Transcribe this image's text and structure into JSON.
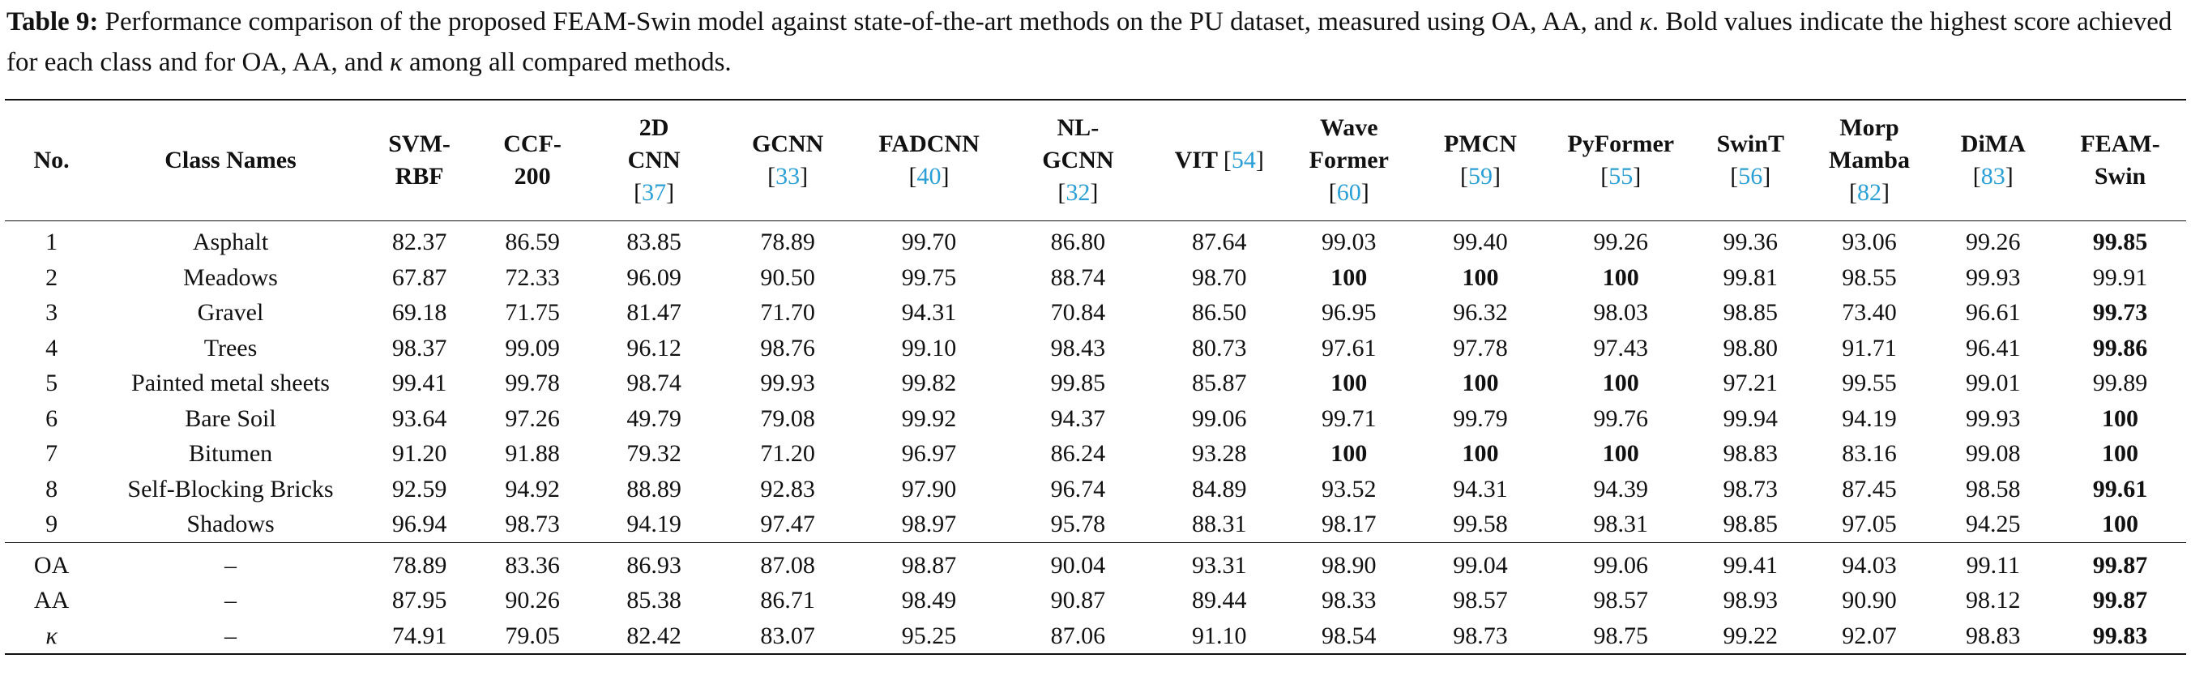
{
  "caption": {
    "label": "Table 9:",
    "text_before_kappa": " Performance comparison of the proposed FEAM-Swin model against state-of-the-art methods on the PU dataset, measured using OA, AA, and ",
    "kappa": "κ",
    "text_middle": ". Bold values indicate the highest score achieved for each class and for OA, AA, and ",
    "text_end": " among all compared methods."
  },
  "table": {
    "headers": [
      {
        "lines": [
          "No."
        ],
        "ref": null
      },
      {
        "lines": [
          "Class Names"
        ],
        "ref": null
      },
      {
        "lines": [
          "SVM-",
          "RBF"
        ],
        "ref": null
      },
      {
        "lines": [
          "CCF-",
          "200"
        ],
        "ref": null
      },
      {
        "lines": [
          "2D",
          "CNN"
        ],
        "ref": "37"
      },
      {
        "lines": [
          "GCNN"
        ],
        "ref": "33"
      },
      {
        "lines": [
          "FADCNN"
        ],
        "ref": "40"
      },
      {
        "lines": [
          "NL-",
          "GCNN"
        ],
        "ref": "32"
      },
      {
        "lines": [
          "VIT"
        ],
        "ref": "54",
        "ref_inline": true
      },
      {
        "lines": [
          "Wave",
          "Former"
        ],
        "ref": "60"
      },
      {
        "lines": [
          "PMCN"
        ],
        "ref": "59"
      },
      {
        "lines": [
          "PyFormer"
        ],
        "ref": "55"
      },
      {
        "lines": [
          "SwinT"
        ],
        "ref": "56"
      },
      {
        "lines": [
          "Morp",
          "Mamba"
        ],
        "ref": "82"
      },
      {
        "lines": [
          "DiMA"
        ],
        "ref": "83"
      },
      {
        "lines": [
          "FEAM-",
          "Swin"
        ],
        "ref": null
      }
    ],
    "class_rows": [
      {
        "no": "1",
        "name": "Asphalt",
        "values": [
          "82.37",
          "86.59",
          "83.85",
          "78.89",
          "99.70",
          "86.80",
          "87.64",
          "99.03",
          "99.40",
          "99.26",
          "99.36",
          "93.06",
          "99.26",
          "99.85"
        ],
        "bold": [
          13
        ]
      },
      {
        "no": "2",
        "name": "Meadows",
        "values": [
          "67.87",
          "72.33",
          "96.09",
          "90.50",
          "99.75",
          "88.74",
          "98.70",
          "100",
          "100",
          "100",
          "99.81",
          "98.55",
          "99.93",
          "99.91"
        ],
        "bold": [
          7,
          8,
          9
        ]
      },
      {
        "no": "3",
        "name": "Gravel",
        "values": [
          "69.18",
          "71.75",
          "81.47",
          "71.70",
          "94.31",
          "70.84",
          "86.50",
          "96.95",
          "96.32",
          "98.03",
          "98.85",
          "73.40",
          "96.61",
          "99.73"
        ],
        "bold": [
          13
        ]
      },
      {
        "no": "4",
        "name": "Trees",
        "values": [
          "98.37",
          "99.09",
          "96.12",
          "98.76",
          "99.10",
          "98.43",
          "80.73",
          "97.61",
          "97.78",
          "97.43",
          "98.80",
          "91.71",
          "96.41",
          "99.86"
        ],
        "bold": [
          13
        ]
      },
      {
        "no": "5",
        "name": "Painted metal sheets",
        "values": [
          "99.41",
          "99.78",
          "98.74",
          "99.93",
          "99.82",
          "99.85",
          "85.87",
          "100",
          "100",
          "100",
          "97.21",
          "99.55",
          "99.01",
          "99.89"
        ],
        "bold": [
          7,
          8,
          9
        ]
      },
      {
        "no": "6",
        "name": "Bare Soil",
        "values": [
          "93.64",
          "97.26",
          "49.79",
          "79.08",
          "99.92",
          "94.37",
          "99.06",
          "99.71",
          "99.79",
          "99.76",
          "99.94",
          "94.19",
          "99.93",
          "100"
        ],
        "bold": [
          13
        ]
      },
      {
        "no": "7",
        "name": "Bitumen",
        "values": [
          "91.20",
          "91.88",
          "79.32",
          "71.20",
          "96.97",
          "86.24",
          "93.28",
          "100",
          "100",
          "100",
          "98.83",
          "83.16",
          "99.08",
          "100"
        ],
        "bold": [
          7,
          8,
          9,
          13
        ]
      },
      {
        "no": "8",
        "name": "Self-Blocking Bricks",
        "values": [
          "92.59",
          "94.92",
          "88.89",
          "92.83",
          "97.90",
          "96.74",
          "84.89",
          "93.52",
          "94.31",
          "94.39",
          "98.73",
          "87.45",
          "98.58",
          "99.61"
        ],
        "bold": [
          13
        ]
      },
      {
        "no": "9",
        "name": "Shadows",
        "values": [
          "96.94",
          "98.73",
          "94.19",
          "97.47",
          "98.97",
          "95.78",
          "88.31",
          "98.17",
          "99.58",
          "98.31",
          "98.85",
          "97.05",
          "94.25",
          "100"
        ],
        "bold": [
          13
        ]
      }
    ],
    "summary_rows": [
      {
        "no": "OA",
        "name": "–",
        "values": [
          "78.89",
          "83.36",
          "86.93",
          "87.08",
          "98.87",
          "90.04",
          "93.31",
          "98.90",
          "99.04",
          "99.06",
          "99.41",
          "94.03",
          "99.11",
          "99.87"
        ],
        "bold": [
          13
        ],
        "italic_label": false
      },
      {
        "no": "AA",
        "name": "–",
        "values": [
          "87.95",
          "90.26",
          "85.38",
          "86.71",
          "98.49",
          "90.87",
          "89.44",
          "98.33",
          "98.57",
          "98.57",
          "98.93",
          "90.90",
          "98.12",
          "99.87"
        ],
        "bold": [
          13
        ],
        "italic_label": false
      },
      {
        "no": "κ",
        "name": "–",
        "values": [
          "74.91",
          "79.05",
          "82.42",
          "83.07",
          "95.25",
          "87.06",
          "91.10",
          "98.54",
          "98.73",
          "98.75",
          "99.22",
          "92.07",
          "98.83",
          "99.83"
        ],
        "bold": [
          13
        ],
        "italic_label": true
      }
    ]
  }
}
